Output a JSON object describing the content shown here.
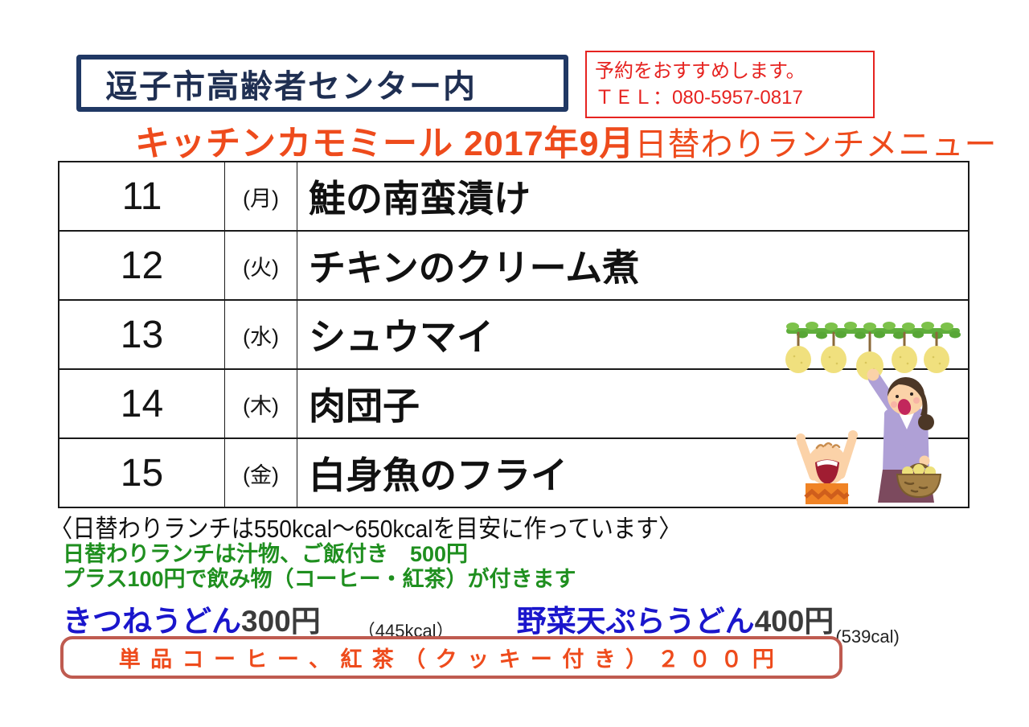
{
  "header": {
    "location": "逗子市高齢者センター内",
    "reservation_line1": "予約をおすすめします。",
    "reservation_line2": "ＴＥＬ：080-5957-0817",
    "title_main": "キッチンカモミール 2017年9月",
    "title_sub": "日替わりランチメニュー"
  },
  "menu_table": {
    "rows": [
      {
        "date": "11",
        "day": "(月)",
        "dish": "鮭の南蛮漬け"
      },
      {
        "date": "12",
        "day": "(火)",
        "dish": "チキンのクリーム煮"
      },
      {
        "date": "13",
        "day": "(水)",
        "dish": "シュウマイ"
      },
      {
        "date": "14",
        "day": "(木)",
        "dish": "肉団子"
      },
      {
        "date": "15",
        "day": "(金)",
        "dish": "白身魚のフライ"
      }
    ]
  },
  "notes": {
    "kcal_guide": "〈日替わりランチは550kcal～650kcalを目安に作っています〉",
    "lunch_price": "日替わりランチは汁物、ご飯付き　500円",
    "drink_option": "プラス100円で飲み物（コーヒー・紅茶）が付きます"
  },
  "sides": {
    "udon1_name": "きつねうどん",
    "udon1_price": "300円",
    "udon1_kcal": "（445kcal）",
    "udon2_name": "野菜天ぷらうどん",
    "udon2_price": "400円",
    "udon2_kcal": "(539cal)"
  },
  "coffee_box": {
    "text": "単品コーヒー、紅茶（クッキー付き）２００円"
  },
  "colors": {
    "navy": "#203864",
    "red": "#e62320",
    "title_orange": "#ee4b1c",
    "green": "#1f8f1f",
    "udon_blue": "#1a16cc",
    "price_gray": "#3b3b3b",
    "coffee_border": "#bf5b50"
  },
  "illustration": {
    "name": "pear-picking-illustration"
  }
}
